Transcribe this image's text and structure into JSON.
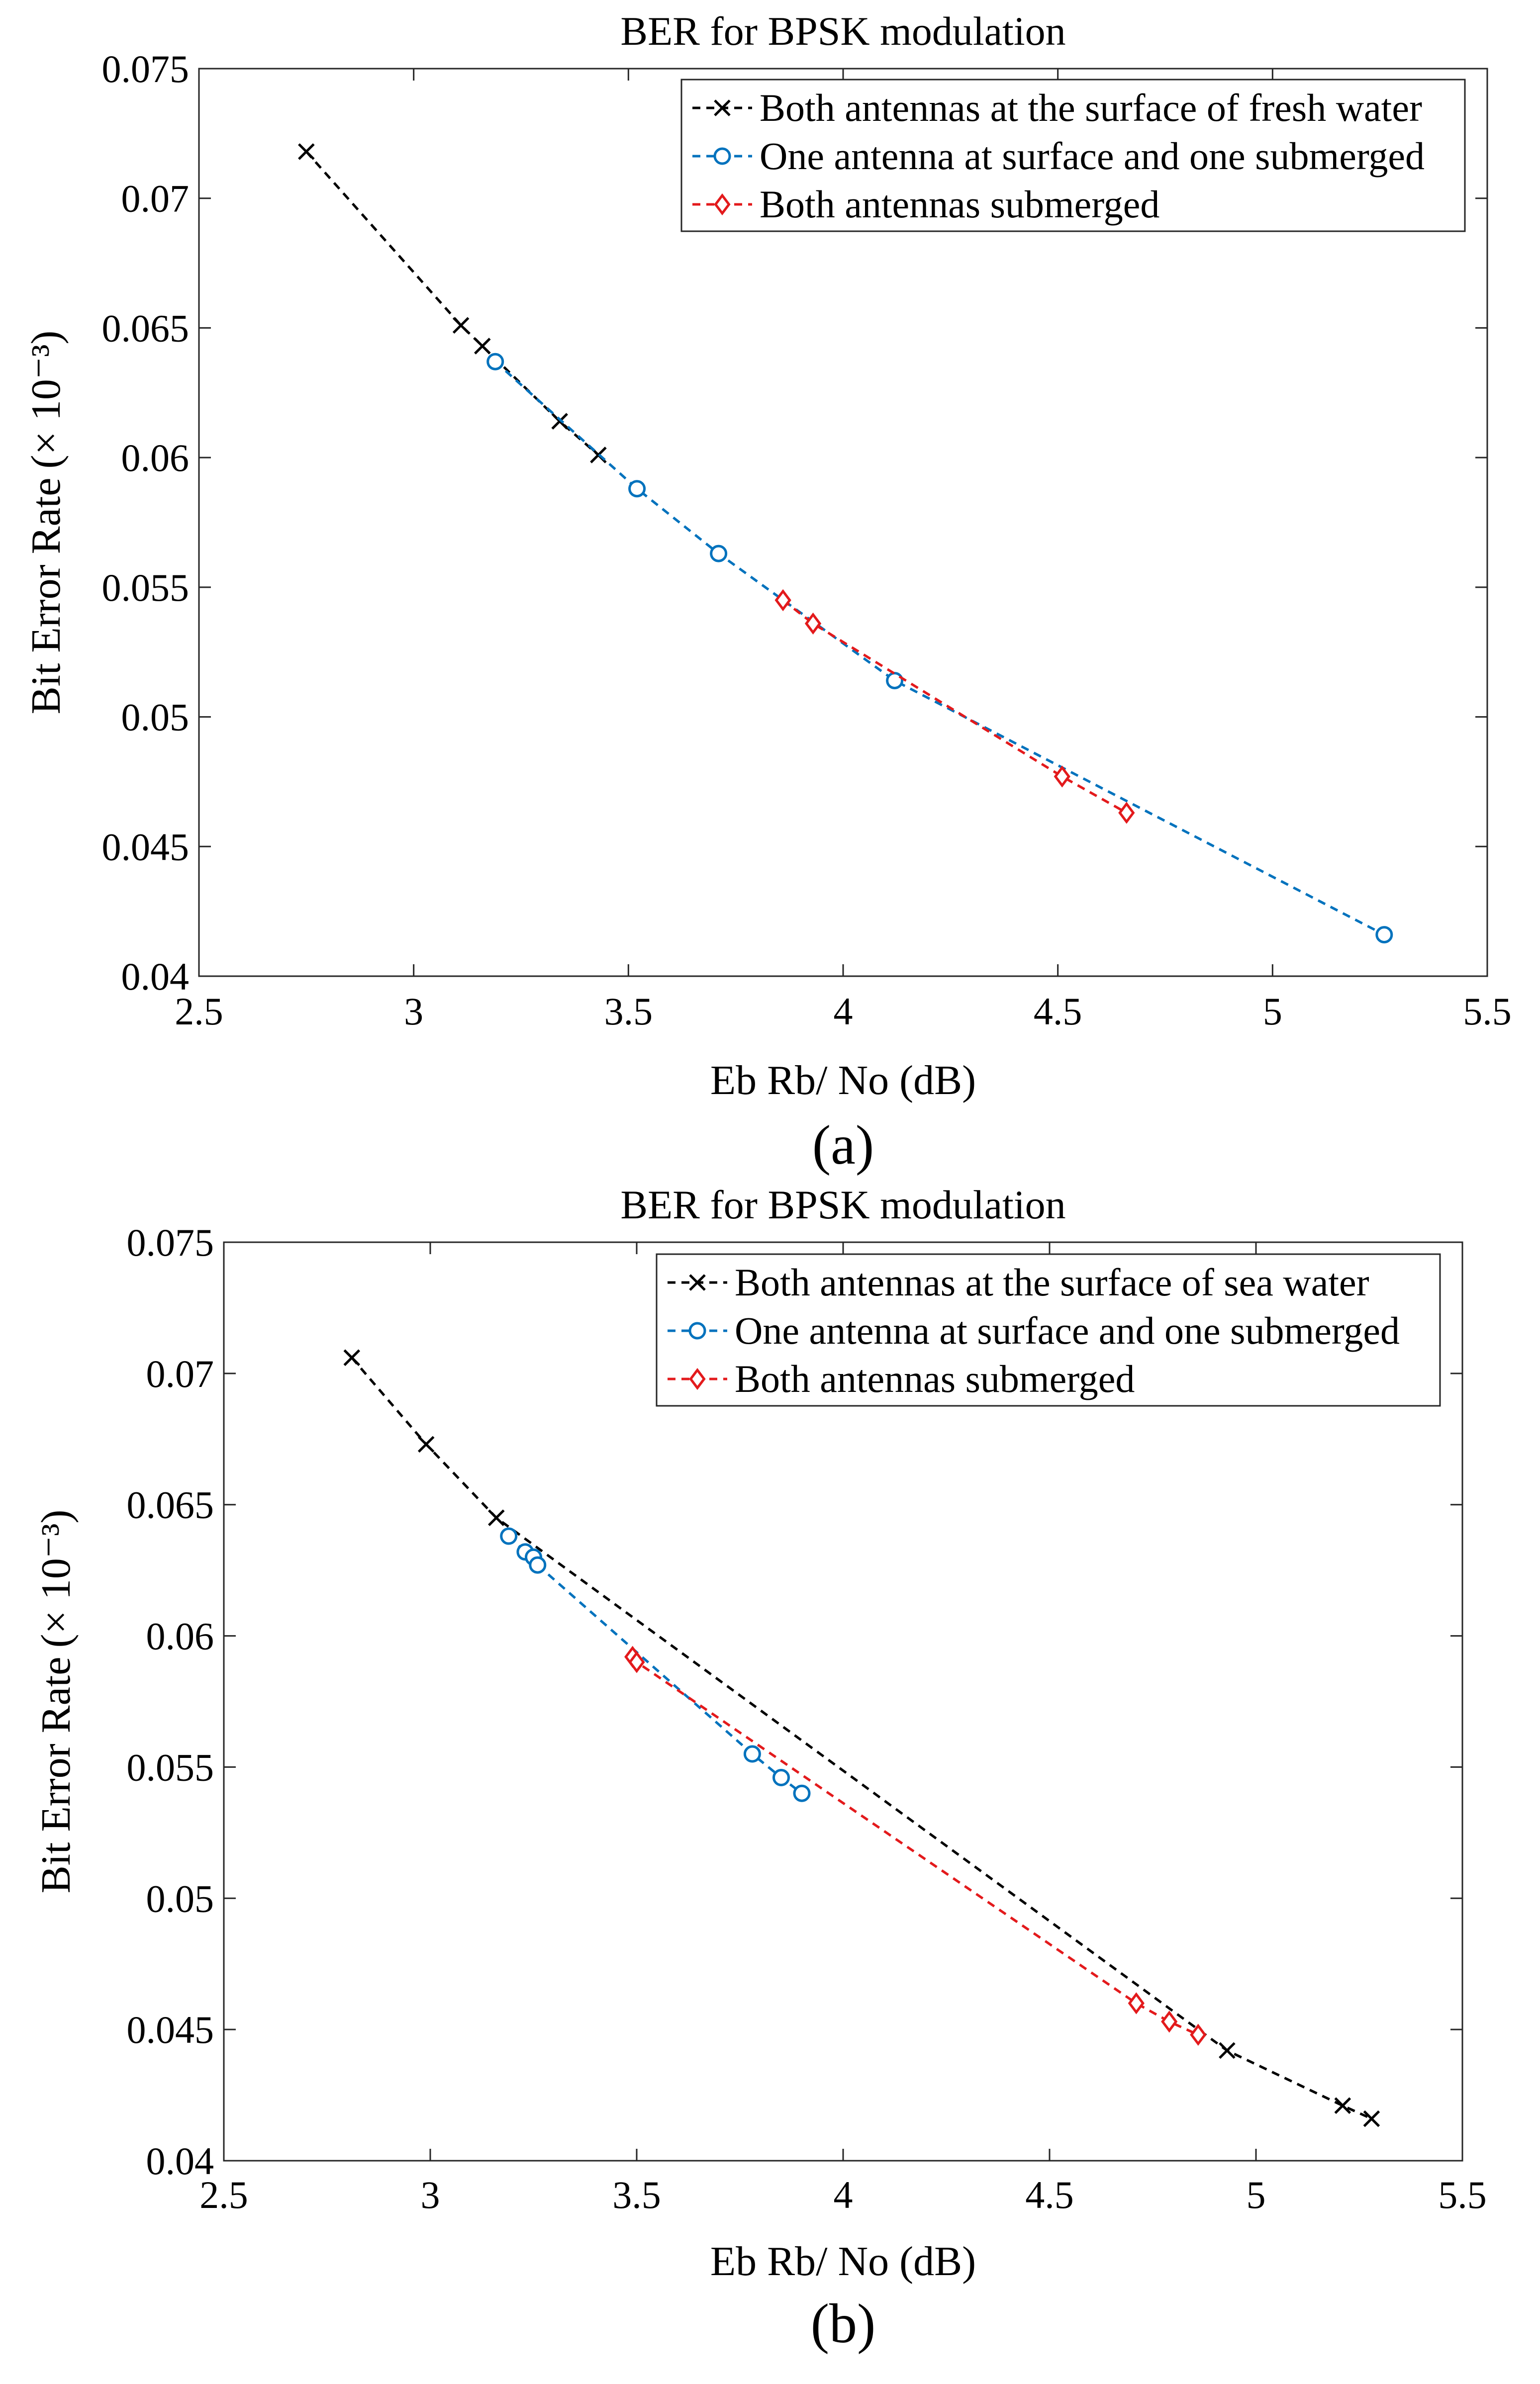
{
  "chart_data": [
    {
      "type": "line",
      "panel_label": "(a)",
      "title": "BER for BPSK modulation",
      "xlabel": "Eb Rb/ No (dB)",
      "ylabel": "Bit Error Rate",
      "ylabel_unit": "(× 10⁻³)",
      "xlim": [
        2.5,
        5.5
      ],
      "ylim": [
        0.04,
        0.075
      ],
      "xticks": [
        "2.5",
        "3",
        "3.5",
        "4",
        "4.5",
        "5",
        "5.5"
      ],
      "yticks": [
        "0.04",
        "0.045",
        "0.05",
        "0.055",
        "0.06",
        "0.065",
        "0.07",
        "0.075"
      ],
      "grid": false,
      "legend_position": "top-right",
      "series": [
        {
          "name": "Both antennas at the surface of fresh water",
          "color": "#000000",
          "marker": "x",
          "x": [
            2.75,
            3.11,
            3.16,
            3.34,
            3.43
          ],
          "y": [
            0.0718,
            0.0651,
            0.0643,
            0.0614,
            0.0601
          ]
        },
        {
          "name": "One antenna at surface and one submerged",
          "color": "#0072BD",
          "marker": "o",
          "x": [
            3.19,
            3.52,
            3.71,
            4.12,
            5.26
          ],
          "y": [
            0.0637,
            0.0588,
            0.0563,
            0.0514,
            0.0416
          ]
        },
        {
          "name": "Both antennas submerged",
          "color": "#E31A1C",
          "marker": "diamond",
          "x": [
            3.86,
            3.93,
            4.51,
            4.66
          ],
          "y": [
            0.0545,
            0.0536,
            0.0477,
            0.0463
          ]
        }
      ]
    },
    {
      "type": "line",
      "panel_label": "(b)",
      "title": "BER for BPSK modulation",
      "xlabel": "Eb Rb/ No (dB)",
      "ylabel": "Bit Error Rate",
      "ylabel_unit": "(× 10⁻³)",
      "xlim": [
        2.5,
        5.5
      ],
      "ylim": [
        0.04,
        0.075
      ],
      "xticks": [
        "2.5",
        "3",
        "3.5",
        "4",
        "4.5",
        "5",
        "5.5"
      ],
      "yticks": [
        "0.04",
        "0.045",
        "0.05",
        "0.055",
        "0.06",
        "0.065",
        "0.07",
        "0.075"
      ],
      "grid": false,
      "legend_position": "top-right",
      "series": [
        {
          "name": "Both antennas at the surface of sea water",
          "color": "#000000",
          "marker": "x",
          "x": [
            5.28,
            5.21,
            4.93,
            2.81,
            2.99,
            3.16
          ],
          "y": [
            0.0416,
            0.0421,
            0.0442,
            0.0706,
            0.0673,
            0.0645
          ]
        },
        {
          "name": "One antenna at surface and one submerged",
          "color": "#0072BD",
          "marker": "o",
          "x": [
            3.19,
            3.23,
            3.25,
            3.26,
            3.78,
            3.85,
            3.9
          ],
          "y": [
            0.0638,
            0.0632,
            0.063,
            0.0627,
            0.0555,
            0.0546,
            0.054
          ]
        },
        {
          "name": "Both antennas submerged",
          "color": "#E31A1C",
          "marker": "diamond",
          "x": [
            3.49,
            3.5,
            4.71,
            4.79,
            4.86
          ],
          "y": [
            0.0592,
            0.059,
            0.046,
            0.0453,
            0.0448
          ]
        }
      ]
    }
  ]
}
